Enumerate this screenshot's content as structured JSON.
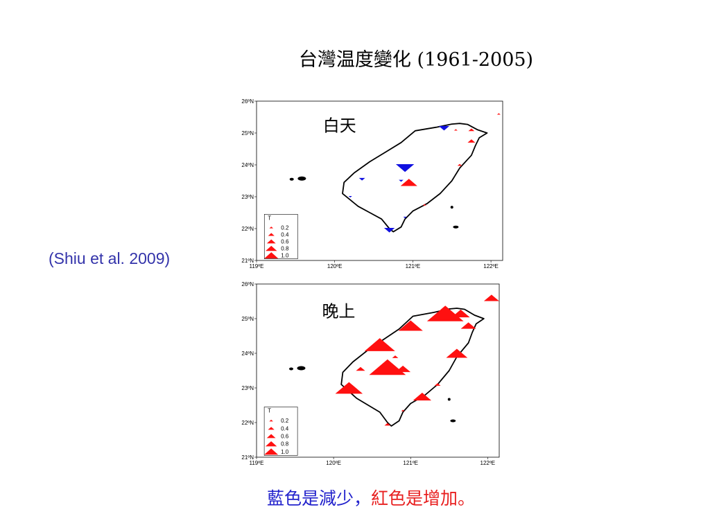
{
  "title": "台灣温度變化 (1961-2005)",
  "citation": "(Shiu et al. 2009)",
  "caption": {
    "blue_part": "藍色是減少，",
    "red_part": "紅色是增加。"
  },
  "colors": {
    "increase": "#ff1010",
    "decrease": "#1010e0",
    "citation": "#3333aa"
  },
  "maps": [
    {
      "label": "白天",
      "y_ticks": [
        "26ºN",
        "25ºN",
        "24ºN",
        "23ºN",
        "22ºN",
        "21ºN"
      ],
      "x_ticks": [
        "119ºE",
        "120ºE",
        "121ºE",
        "122ºE"
      ],
      "legend": {
        "title": "T",
        "values": [
          "0.2",
          "0.4",
          "0.6",
          "0.8",
          "1.0"
        ]
      },
      "stations": [
        {
          "lon": 122.1,
          "lat": 25.6,
          "change": 0.05
        },
        {
          "lon": 121.4,
          "lat": 25.15,
          "change": -0.35
        },
        {
          "lon": 121.55,
          "lat": 25.1,
          "change": 0.1
        },
        {
          "lon": 121.75,
          "lat": 25.1,
          "change": 0.2
        },
        {
          "lon": 121.75,
          "lat": 24.75,
          "change": 0.25
        },
        {
          "lon": 121.6,
          "lat": 24.0,
          "change": 0.15
        },
        {
          "lon": 120.9,
          "lat": 23.9,
          "change": -0.6
        },
        {
          "lon": 120.85,
          "lat": 23.5,
          "change": -0.15
        },
        {
          "lon": 120.95,
          "lat": 23.45,
          "change": 0.55
        },
        {
          "lon": 120.2,
          "lat": 23.0,
          "change": -0.08
        },
        {
          "lon": 120.7,
          "lat": 21.95,
          "change": -0.35
        },
        {
          "lon": 120.9,
          "lat": 22.35,
          "change": -0.1
        },
        {
          "lon": 121.15,
          "lat": 22.75,
          "change": 0.1
        },
        {
          "lon": 120.35,
          "lat": 23.55,
          "change": -0.2
        }
      ]
    },
    {
      "label": "晚上",
      "y_ticks": [
        "26ºN",
        "25ºN",
        "24ºN",
        "23ºN",
        "22ºN",
        "21ºN"
      ],
      "x_ticks": [
        "119ºE",
        "120ºE",
        "121ºE",
        "122ºE"
      ],
      "legend": {
        "title": "T",
        "values": [
          "0.2",
          "0.4",
          "0.6",
          "0.8",
          "1.0"
        ]
      },
      "stations": [
        {
          "lon": 122.05,
          "lat": 25.6,
          "change": 0.5
        },
        {
          "lon": 121.45,
          "lat": 25.15,
          "change": 1.2
        },
        {
          "lon": 121.65,
          "lat": 25.15,
          "change": 0.6
        },
        {
          "lon": 121.75,
          "lat": 24.8,
          "change": 0.5
        },
        {
          "lon": 121.0,
          "lat": 24.8,
          "change": 0.8
        },
        {
          "lon": 120.6,
          "lat": 24.25,
          "change": 1.0
        },
        {
          "lon": 121.6,
          "lat": 24.0,
          "change": 0.7
        },
        {
          "lon": 120.8,
          "lat": 23.9,
          "change": 0.2
        },
        {
          "lon": 120.7,
          "lat": 23.6,
          "change": 1.2
        },
        {
          "lon": 120.9,
          "lat": 23.55,
          "change": 0.5
        },
        {
          "lon": 120.2,
          "lat": 23.0,
          "change": 0.9
        },
        {
          "lon": 121.15,
          "lat": 22.75,
          "change": 0.6
        },
        {
          "lon": 121.35,
          "lat": 23.1,
          "change": 0.2
        },
        {
          "lon": 120.9,
          "lat": 22.35,
          "change": 0.1
        },
        {
          "lon": 120.7,
          "lat": 21.95,
          "change": 0.2
        },
        {
          "lon": 120.35,
          "lat": 23.55,
          "change": 0.3
        }
      ]
    }
  ]
}
